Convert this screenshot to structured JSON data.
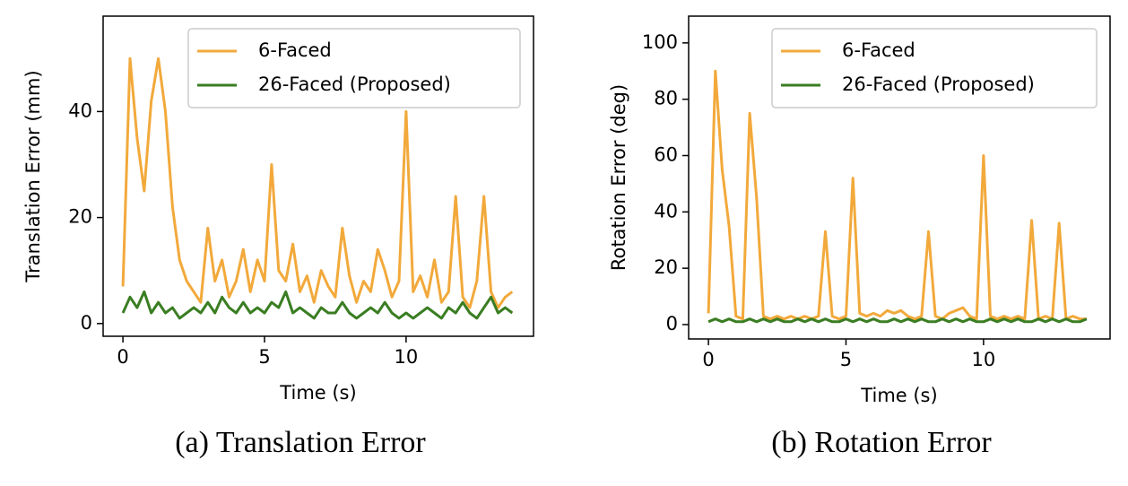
{
  "chart_data": [
    {
      "type": "line",
      "caption": "(a) Translation Error",
      "xlabel": "Time (s)",
      "ylabel": "Translation Error (mm)",
      "xlim": [
        -0.7,
        14.5
      ],
      "ylim": [
        -2.4,
        58
      ],
      "xticks": [
        0,
        5,
        10
      ],
      "yticks": [
        0,
        20,
        40
      ],
      "legend": "upper right",
      "x": [
        0,
        0.25,
        0.5,
        0.75,
        1,
        1.25,
        1.5,
        1.75,
        2,
        2.25,
        2.5,
        2.75,
        3,
        3.25,
        3.5,
        3.75,
        4,
        4.25,
        4.5,
        4.75,
        5,
        5.25,
        5.5,
        5.75,
        6,
        6.25,
        6.5,
        6.75,
        7,
        7.25,
        7.5,
        7.75,
        8,
        8.25,
        8.5,
        8.75,
        9,
        9.25,
        9.5,
        9.75,
        10,
        10.25,
        10.5,
        10.75,
        11,
        11.25,
        11.5,
        11.75,
        12,
        12.25,
        12.5,
        12.75,
        13,
        13.25,
        13.5,
        13.75
      ],
      "series": [
        {
          "name": "6-Faced",
          "color": "#f2a93b",
          "values": [
            7,
            50,
            35,
            25,
            42,
            50,
            40,
            22,
            12,
            8,
            6,
            4,
            18,
            8,
            12,
            5,
            8,
            14,
            6,
            12,
            8,
            30,
            10,
            8,
            15,
            6,
            9,
            4,
            10,
            7,
            5,
            18,
            9,
            4,
            8,
            6,
            14,
            10,
            5,
            8,
            40,
            6,
            9,
            5,
            12,
            4,
            6,
            24,
            5,
            3,
            8,
            24,
            6,
            3,
            5,
            6
          ]
        },
        {
          "name": "26-Faced (Proposed)",
          "color": "#3a7d22",
          "values": [
            2,
            5,
            3,
            6,
            2,
            4,
            2,
            3,
            1,
            2,
            3,
            2,
            4,
            2,
            5,
            3,
            2,
            4,
            2,
            3,
            2,
            4,
            3,
            6,
            2,
            3,
            2,
            1,
            3,
            2,
            2,
            4,
            2,
            1,
            2,
            3,
            2,
            4,
            2,
            1,
            2,
            1,
            2,
            3,
            2,
            1,
            3,
            2,
            4,
            2,
            1,
            3,
            5,
            2,
            3,
            2
          ]
        }
      ]
    },
    {
      "type": "line",
      "caption": "(b) Rotation Error",
      "xlabel": "Time (s)",
      "ylabel": "Rotation Error (deg)",
      "xlim": [
        -0.72,
        14.6
      ],
      "ylim": [
        -5.1,
        109.5
      ],
      "xticks": [
        0,
        5,
        10
      ],
      "yticks": [
        0,
        20,
        40,
        60,
        80,
        100
      ],
      "legend": "upper right",
      "x": [
        0,
        0.25,
        0.5,
        0.75,
        1,
        1.25,
        1.5,
        1.75,
        2,
        2.25,
        2.5,
        2.75,
        3,
        3.25,
        3.5,
        3.75,
        4,
        4.25,
        4.5,
        4.75,
        5,
        5.25,
        5.5,
        5.75,
        6,
        6.25,
        6.5,
        6.75,
        7,
        7.25,
        7.5,
        7.75,
        8,
        8.25,
        8.5,
        8.75,
        9,
        9.25,
        9.5,
        9.75,
        10,
        10.25,
        10.5,
        10.75,
        11,
        11.25,
        11.5,
        11.75,
        12,
        12.25,
        12.5,
        12.75,
        13,
        13.25,
        13.5,
        13.75
      ],
      "series": [
        {
          "name": "6-Faced",
          "color": "#f2a93b",
          "values": [
            4,
            90,
            55,
            35,
            3,
            2,
            75,
            45,
            3,
            2,
            3,
            2,
            3,
            2,
            3,
            2,
            3,
            33,
            3,
            2,
            3,
            52,
            4,
            3,
            4,
            3,
            5,
            4,
            5,
            3,
            2,
            3,
            33,
            3,
            2,
            4,
            5,
            6,
            3,
            2,
            60,
            3,
            2,
            3,
            2,
            3,
            2,
            37,
            2,
            3,
            2,
            36,
            2,
            3,
            2,
            2
          ]
        },
        {
          "name": "26-Faced (Proposed)",
          "color": "#3a7d22",
          "values": [
            1,
            2,
            1,
            2,
            1,
            1,
            2,
            1,
            2,
            1,
            2,
            1,
            1,
            2,
            1,
            2,
            1,
            2,
            1,
            1,
            2,
            1,
            2,
            1,
            2,
            1,
            1,
            2,
            1,
            2,
            1,
            2,
            1,
            1,
            2,
            1,
            2,
            1,
            2,
            1,
            1,
            2,
            1,
            2,
            1,
            2,
            1,
            1,
            2,
            1,
            2,
            1,
            2,
            1,
            1,
            2
          ]
        }
      ]
    }
  ]
}
